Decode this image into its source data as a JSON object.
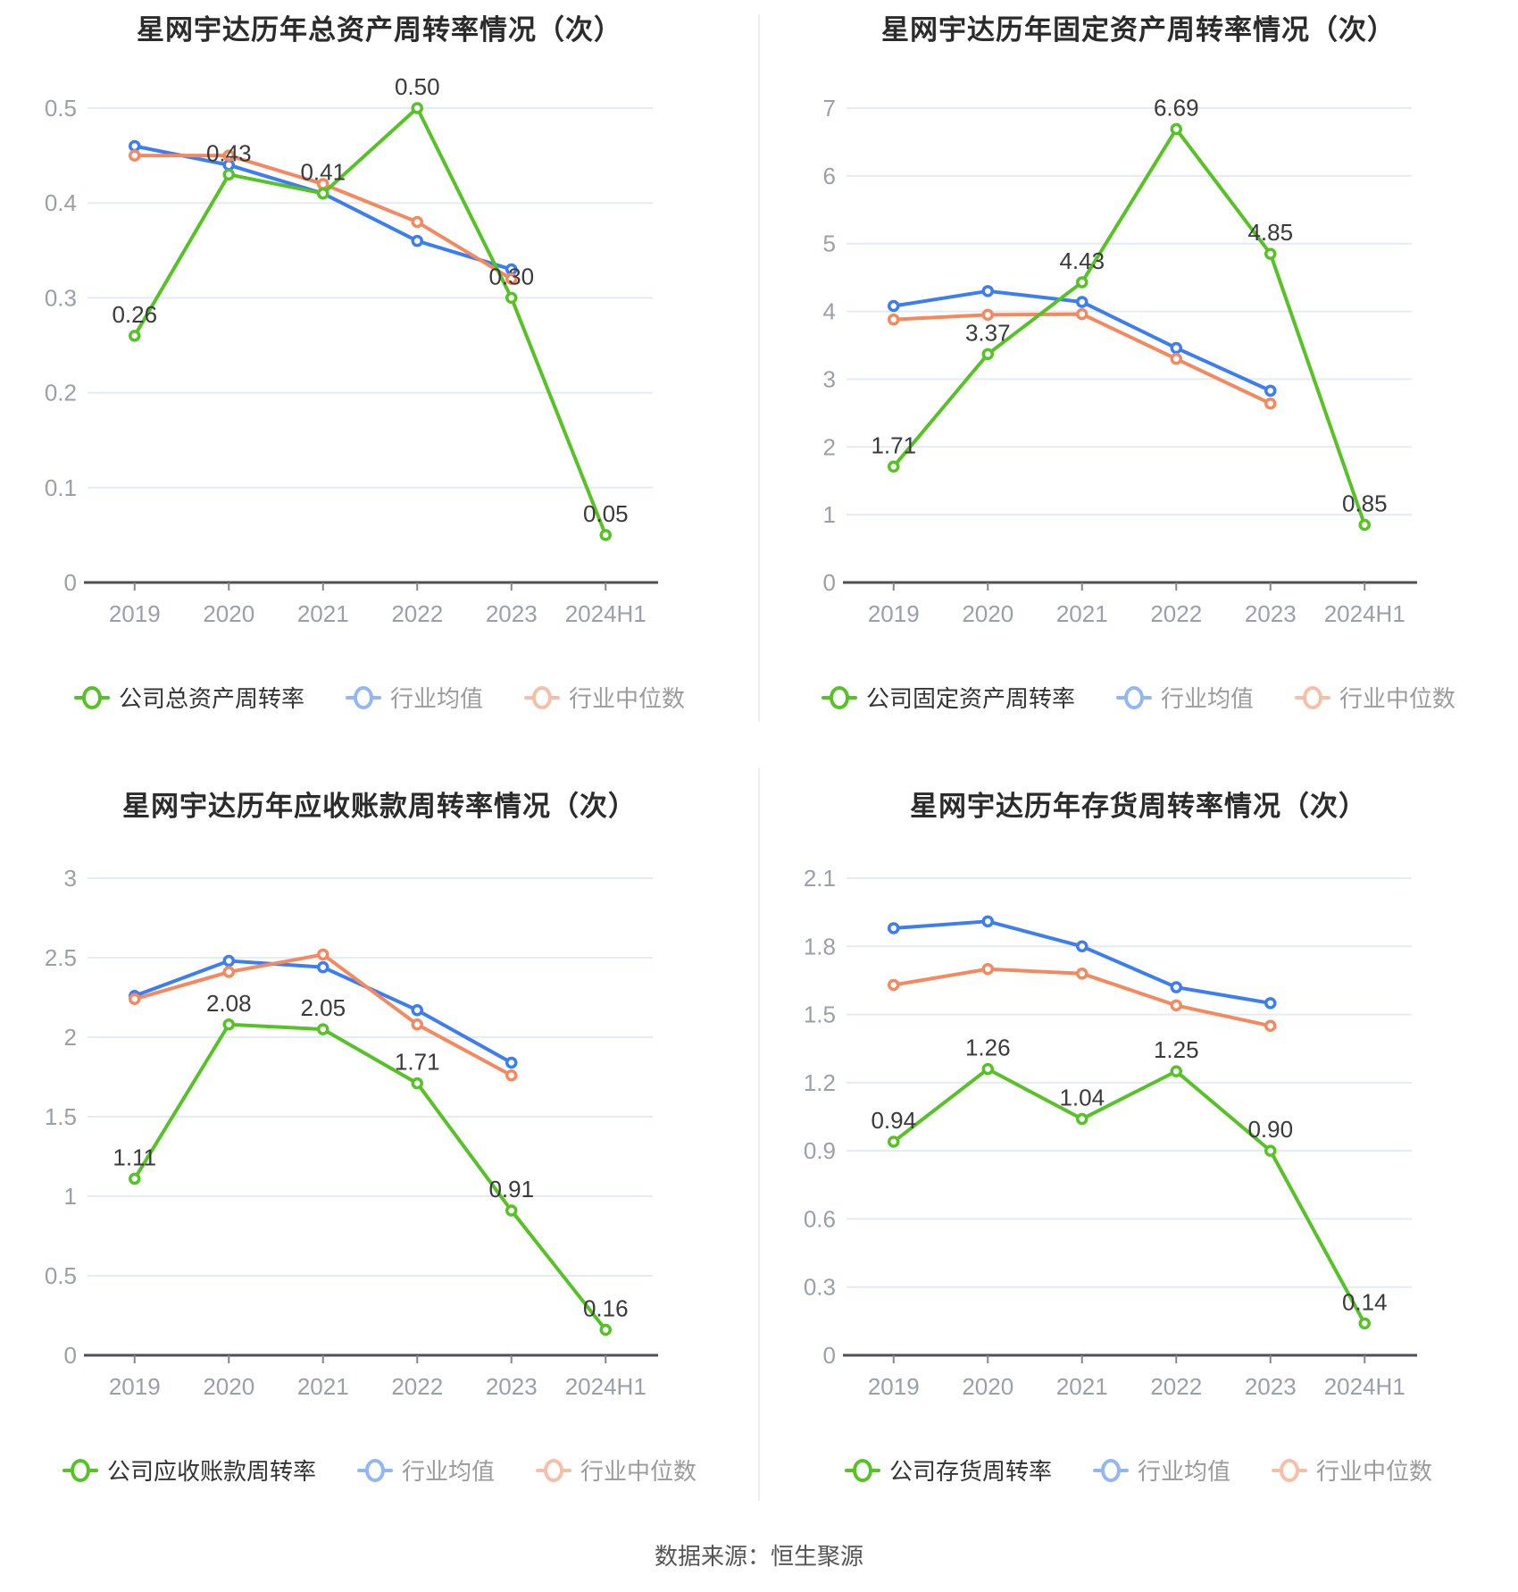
{
  "footer": {
    "source_label": "数据来源：恒生聚源"
  },
  "colors": {
    "company": "#57c226",
    "industry_avg": "#3c7def",
    "industry_median": "#f48960"
  },
  "chart_data": [
    {
      "type": "line",
      "title": "星网宇达历年总资产周转率情况（次）",
      "categories": [
        "2019",
        "2020",
        "2021",
        "2022",
        "2023",
        "2024H1"
      ],
      "ylim": [
        0,
        0.5
      ],
      "ystep": 0.1,
      "yticks": [
        "0",
        "0.1",
        "0.2",
        "0.3",
        "0.4",
        "0.5"
      ],
      "grid": true,
      "legend_position": "bottom",
      "series": [
        {
          "name": "公司总资产周转率",
          "color": "#57c226",
          "values": [
            0.26,
            0.43,
            0.41,
            0.5,
            0.3,
            0.05
          ],
          "labels": [
            "0.26",
            "0.43",
            "0.41",
            "0.50",
            "0.30",
            "0.05"
          ]
        },
        {
          "name": "行业均值",
          "color": "#3c7def",
          "values": [
            0.46,
            0.44,
            0.41,
            0.36,
            0.33
          ]
        },
        {
          "name": "行业中位数",
          "color": "#f48960",
          "values": [
            0.45,
            0.45,
            0.42,
            0.38,
            0.32
          ]
        }
      ]
    },
    {
      "type": "line",
      "title": "星网宇达历年固定资产周转率情况（次）",
      "categories": [
        "2019",
        "2020",
        "2021",
        "2022",
        "2023",
        "2024H1"
      ],
      "ylim": [
        0,
        7
      ],
      "ystep": 1,
      "yticks": [
        "0",
        "1",
        "2",
        "3",
        "4",
        "5",
        "6",
        "7"
      ],
      "grid": true,
      "legend_position": "bottom",
      "series": [
        {
          "name": "公司固定资产周转率",
          "color": "#57c226",
          "values": [
            1.71,
            3.37,
            4.43,
            6.69,
            4.85,
            0.85
          ],
          "labels": [
            "1.71",
            "3.37",
            "4.43",
            "6.69",
            "4.85",
            "0.85"
          ]
        },
        {
          "name": "行业均值",
          "color": "#3c7def",
          "values": [
            4.08,
            4.3,
            4.14,
            3.46,
            2.83
          ]
        },
        {
          "name": "行业中位数",
          "color": "#f48960",
          "values": [
            3.88,
            3.95,
            3.96,
            3.3,
            2.64
          ]
        }
      ]
    },
    {
      "type": "line",
      "title": "星网宇达历年应收账款周转率情况（次）",
      "categories": [
        "2019",
        "2020",
        "2021",
        "2022",
        "2023",
        "2024H1"
      ],
      "ylim": [
        0,
        3
      ],
      "ystep": 0.5,
      "yticks": [
        "0",
        "0.5",
        "1",
        "1.5",
        "2",
        "2.5",
        "3"
      ],
      "grid": true,
      "legend_position": "bottom",
      "series": [
        {
          "name": "公司应收账款周转率",
          "color": "#57c226",
          "values": [
            1.11,
            2.08,
            2.05,
            1.71,
            0.91,
            0.16
          ],
          "labels": [
            "1.11",
            "2.08",
            "2.05",
            "1.71",
            "0.91",
            "0.16"
          ]
        },
        {
          "name": "行业均值",
          "color": "#3c7def",
          "values": [
            2.26,
            2.48,
            2.44,
            2.17,
            1.84
          ]
        },
        {
          "name": "行业中位数",
          "color": "#f48960",
          "values": [
            2.24,
            2.41,
            2.52,
            2.08,
            1.76
          ]
        }
      ]
    },
    {
      "type": "line",
      "title": "星网宇达历年存货周转率情况（次）",
      "categories": [
        "2019",
        "2020",
        "2021",
        "2022",
        "2023",
        "2024H1"
      ],
      "ylim": [
        0,
        2.1
      ],
      "ystep": 0.3,
      "yticks": [
        "0",
        "0.3",
        "0.6",
        "0.9",
        "1.2",
        "1.5",
        "1.8",
        "2.1"
      ],
      "grid": true,
      "legend_position": "bottom",
      "series": [
        {
          "name": "公司存货周转率",
          "color": "#57c226",
          "values": [
            0.94,
            1.26,
            1.04,
            1.25,
            0.9,
            0.14
          ],
          "labels": [
            "0.94",
            "1.26",
            "1.04",
            "1.25",
            "0.90",
            "0.14"
          ]
        },
        {
          "name": "行业均值",
          "color": "#3c7def",
          "values": [
            1.88,
            1.91,
            1.8,
            1.62,
            1.55
          ]
        },
        {
          "name": "行业中位数",
          "color": "#f48960",
          "values": [
            1.63,
            1.7,
            1.68,
            1.54,
            1.45
          ]
        }
      ]
    }
  ]
}
